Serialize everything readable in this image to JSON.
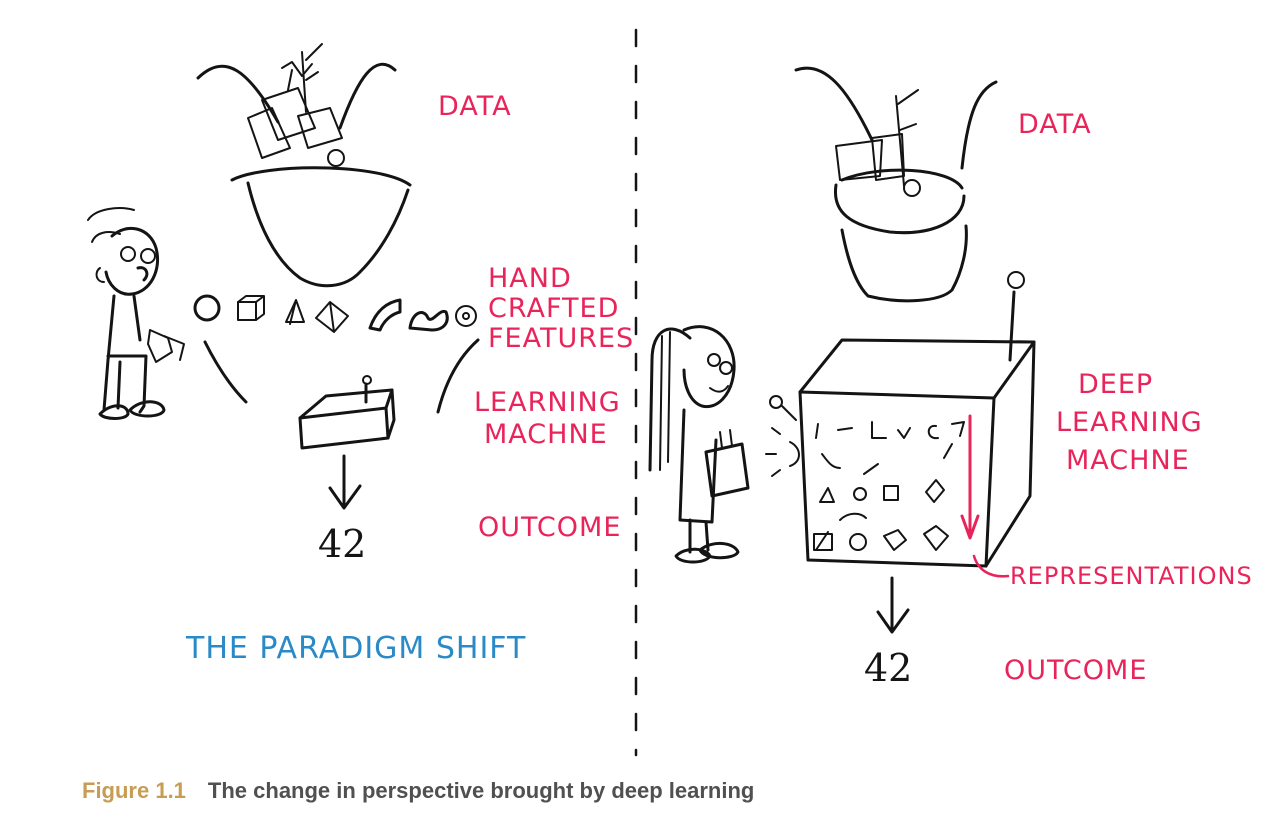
{
  "left_panel": {
    "data_label": "DATA",
    "features_label": [
      "HAND",
      "CRAFTED",
      "FEATURES"
    ],
    "machine_label": [
      "LEARNING",
      "MACHNE"
    ],
    "outcome_label": "OUTCOME",
    "outcome_value": "42",
    "title": "THE PARADIGM SHIFT"
  },
  "right_panel": {
    "data_label": "DATA",
    "machine_label": [
      "DEEP",
      "LEARNING",
      "MACHNE"
    ],
    "representations_label": "REPRESENTATIONS",
    "outcome_label": "OUTCOME",
    "outcome_value": "42"
  },
  "caption": {
    "number": "Figure 1.1",
    "text": "The change in perspective brought by deep learning"
  },
  "colors": {
    "accent_red": "#e9245a",
    "accent_blue": "#2a8ac7",
    "caption_gold": "#c79c54",
    "ink": "#141414"
  }
}
